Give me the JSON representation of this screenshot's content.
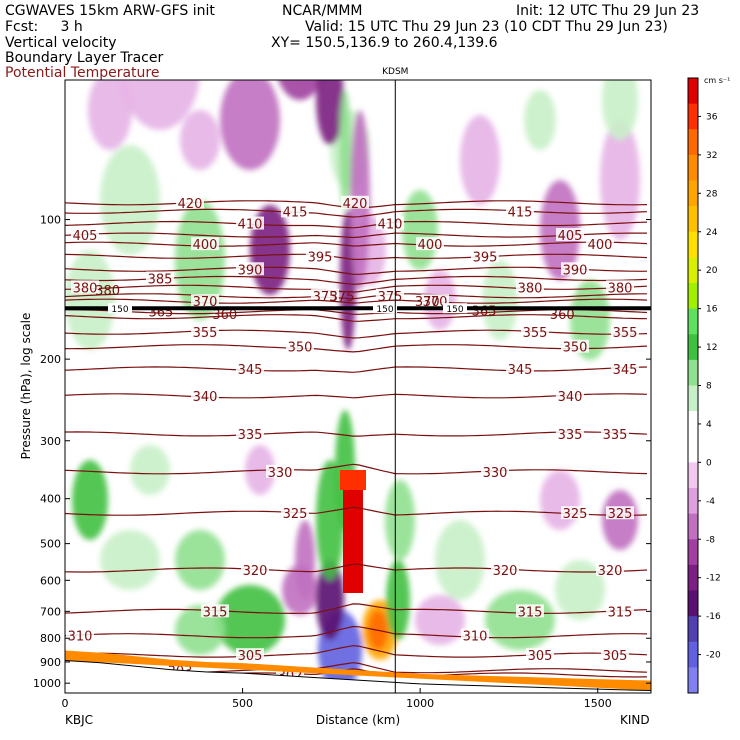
{
  "header": {
    "left1": "CGWAVES 15km ARW-GFS init",
    "left2": "Fcst:     3 h",
    "left3": "Vertical velocity",
    "left4": "Boundary Layer Tracer",
    "left5": "Potential Temperature",
    "center1": "NCAR/MMM",
    "init": "Init: 12 UTC Thu 29 Jun 23",
    "valid": "Valid: 15 UTC Thu 29 Jun 23 (10 CDT Thu 29 Jun 23)",
    "xy": "XY= 150.5,136.9 to 260.4,139.6"
  },
  "colors": {
    "theta": "#7a1010",
    "tropopause": "#000000"
  },
  "chart_data": {
    "type": "heatmap",
    "xlabel": "Distance (km)",
    "ylabel": "Pressure (hPa), log scale",
    "xlim": [
      0,
      1650
    ],
    "ylim": [
      1050,
      50
    ],
    "y_scale": "log",
    "x_ticks": [
      "0",
      "500",
      "1000",
      "1500"
    ],
    "x_tick_values": [
      0,
      500,
      1000,
      1500
    ],
    "y_ticks": [
      "100",
      "200",
      "300",
      "400",
      "500",
      "600",
      "700",
      "800",
      "900",
      "1000"
    ],
    "y_tick_values": [
      100,
      200,
      300,
      400,
      500,
      600,
      700,
      800,
      900,
      1000
    ],
    "left_station": "KBJC",
    "right_station": "KIND",
    "mid_station": "KDSM",
    "mid_station_x": 930,
    "colorbar": {
      "unit": "cm s⁻¹",
      "ticks": [
        "36",
        "32",
        "28",
        "24",
        "20",
        "16",
        "12",
        "8",
        "4",
        "0",
        "-4",
        "-8",
        "-12",
        "-16",
        "-20"
      ],
      "tick_values": [
        36,
        32,
        28,
        24,
        20,
        16,
        12,
        8,
        4,
        0,
        -4,
        -8,
        -12,
        -16,
        -20
      ],
      "colors": [
        "#e00000",
        "#ff3000",
        "#ff6a00",
        "#ff8c00",
        "#ffa500",
        "#ffc000",
        "#ffe000",
        "#d8f000",
        "#a0f000",
        "#60e060",
        "#40c040",
        "#90e090",
        "#c8f0c8",
        "#ffffff",
        "#ffffff",
        "#f0c8f0",
        "#e0a0e0",
        "#c070c0",
        "#a040a0",
        "#7a2080",
        "#5a1070",
        "#5040b0",
        "#6060e0",
        "#8080f0"
      ]
    },
    "theta_lines": [
      {
        "label": "420",
        "p": 92
      },
      {
        "label": "415",
        "p": 96
      },
      {
        "label": "410",
        "p": 102
      },
      {
        "label": "405",
        "p": 108
      },
      {
        "label": "400",
        "p": 113
      },
      {
        "label": "395",
        "p": 120
      },
      {
        "label": "390",
        "p": 128
      },
      {
        "label": "385",
        "p": 134
      },
      {
        "label": "380",
        "p": 140
      },
      {
        "label": "375",
        "p": 146
      },
      {
        "label": "370",
        "p": 150
      },
      {
        "label": "365",
        "p": 158
      },
      {
        "label": "360",
        "p": 162
      },
      {
        "label": "355",
        "p": 175
      },
      {
        "label": "350",
        "p": 188
      },
      {
        "label": "345",
        "p": 210
      },
      {
        "label": "340",
        "p": 240
      },
      {
        "label": "335",
        "p": 290
      },
      {
        "label": "330",
        "p": 350
      },
      {
        "label": "325",
        "p": 430
      },
      {
        "label": "320",
        "p": 570
      },
      {
        "label": "315",
        "p": 700
      },
      {
        "label": "310",
        "p": 790
      },
      {
        "label": "305",
        "p": 870
      },
      {
        "label": "303",
        "p": 940
      },
      {
        "label": "302",
        "p": 960
      }
    ],
    "tropopause_label": "150",
    "tropopause_p": 150,
    "labels_extra": [
      {
        "text": "380",
        "x": 120,
        "p": 142
      },
      {
        "text": "365",
        "x": 270,
        "p": 158
      },
      {
        "text": "360",
        "x": 450,
        "p": 160
      },
      {
        "text": "375",
        "x": 780,
        "p": 146
      },
      {
        "text": "370",
        "x": 1020,
        "p": 150
      },
      {
        "text": "365",
        "x": 1180,
        "p": 157
      },
      {
        "text": "360",
        "x": 1400,
        "p": 160
      }
    ],
    "series": [
      {
        "name": "",
        "points": [
          {
            "x": 780,
            "p": 220,
            "w": 32,
            "kind": "updraft"
          },
          {
            "x": 830,
            "p": 400,
            "w": 36,
            "kind": "updraft"
          }
        ]
      }
    ],
    "terrain_profile": [
      [
        0,
        850
      ],
      [
        100,
        860
      ],
      [
        200,
        875
      ],
      [
        300,
        890
      ],
      [
        400,
        900
      ],
      [
        500,
        905
      ],
      [
        600,
        915
      ],
      [
        700,
        925
      ],
      [
        800,
        935
      ],
      [
        900,
        945
      ],
      [
        1000,
        955
      ],
      [
        1100,
        960
      ],
      [
        1200,
        965
      ],
      [
        1300,
        970
      ],
      [
        1400,
        975
      ],
      [
        1500,
        980
      ],
      [
        1600,
        985
      ],
      [
        1650,
        987
      ]
    ]
  }
}
